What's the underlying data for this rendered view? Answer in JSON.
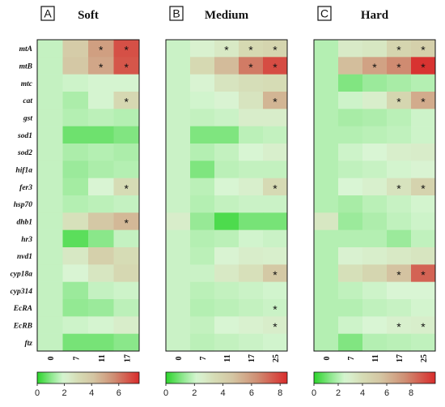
{
  "genes": [
    "mtA",
    "mtB",
    "mtc",
    "cat",
    "gst",
    "sod1",
    "sod2",
    "hif1a",
    "fer3",
    "hsp70",
    "dhb1",
    "hr3",
    "nvd1",
    "cyp18a",
    "cyp314",
    "EcRA",
    "EcRB",
    "ftz"
  ],
  "chart_data": [
    {
      "type": "heatmap",
      "panel_label": "A",
      "title": "Soft",
      "x": [
        "0",
        "7",
        "11",
        "17"
      ],
      "colorbar": {
        "min": 0,
        "max": 7.5,
        "ticks": [
          "0",
          "2",
          "4",
          "6"
        ],
        "tick_values": [
          0,
          2,
          4,
          6
        ]
      },
      "values": [
        [
          1.7,
          3.8,
          5.2,
          6.8
        ],
        [
          1.7,
          4.0,
          5.0,
          6.7
        ],
        [
          1.7,
          1.8,
          1.9,
          1.9
        ],
        [
          1.7,
          1.4,
          1.9,
          3.2
        ],
        [
          1.7,
          1.5,
          1.6,
          1.5
        ],
        [
          1.7,
          0.7,
          0.7,
          0.9
        ],
        [
          1.7,
          1.4,
          1.5,
          1.4
        ],
        [
          1.7,
          1.2,
          1.4,
          1.5
        ],
        [
          1.7,
          1.3,
          2.0,
          3.0
        ],
        [
          1.7,
          1.5,
          1.6,
          1.7
        ],
        [
          1.7,
          2.8,
          4.0,
          4.5
        ],
        [
          1.7,
          0.5,
          1.0,
          1.7
        ],
        [
          1.7,
          2.5,
          3.6,
          3.0
        ],
        [
          1.7,
          2.0,
          2.6,
          3.2
        ],
        [
          1.7,
          1.2,
          1.7,
          1.8
        ],
        [
          1.7,
          1.1,
          1.2,
          1.6
        ],
        [
          1.7,
          1.8,
          1.9,
          2.3
        ],
        [
          1.7,
          0.8,
          0.8,
          1.0
        ]
      ],
      "significant": [
        [
          0,
          2
        ],
        [
          0,
          3
        ],
        [
          1,
          2
        ],
        [
          1,
          3
        ],
        [
          3,
          3
        ],
        [
          8,
          3
        ],
        [
          10,
          3
        ]
      ]
    },
    {
      "type": "heatmap",
      "panel_label": "B",
      "title": "Medium",
      "x": [
        "0",
        "7",
        "11",
        "17",
        "25"
      ],
      "colorbar": {
        "min": 0,
        "max": 8.5,
        "ticks": [
          "0",
          "2",
          "4",
          "6",
          "8"
        ],
        "tick_values": [
          0,
          2,
          4,
          6,
          8
        ]
      },
      "values": [
        [
          2.0,
          2.4,
          2.8,
          3.6,
          3.8
        ],
        [
          2.0,
          3.6,
          5.0,
          6.8,
          7.8
        ],
        [
          2.0,
          2.3,
          3.0,
          3.3,
          3.4
        ],
        [
          2.0,
          2.1,
          2.3,
          3.0,
          5.2
        ],
        [
          2.0,
          1.9,
          2.0,
          2.6,
          2.6
        ],
        [
          2.0,
          1.0,
          1.0,
          1.8,
          1.9
        ],
        [
          2.0,
          1.7,
          1.9,
          2.2,
          2.5
        ],
        [
          2.0,
          1.0,
          1.8,
          1.9,
          1.9
        ],
        [
          2.0,
          1.8,
          2.2,
          2.5,
          3.5
        ],
        [
          2.0,
          1.7,
          1.9,
          2.0,
          2.0
        ],
        [
          2.6,
          1.3,
          0.4,
          0.9,
          0.9
        ],
        [
          2.0,
          1.7,
          1.8,
          2.1,
          2.0
        ],
        [
          2.0,
          1.8,
          2.3,
          2.6,
          2.5
        ],
        [
          2.0,
          2.0,
          2.8,
          3.2,
          4.5
        ],
        [
          2.0,
          1.8,
          1.9,
          2.0,
          2.1
        ],
        [
          2.0,
          1.7,
          1.8,
          1.9,
          2.0
        ],
        [
          2.0,
          1.9,
          2.2,
          2.4,
          2.6
        ],
        [
          2.0,
          1.8,
          1.9,
          2.0,
          2.1
        ]
      ],
      "significant": [
        [
          0,
          2
        ],
        [
          0,
          3
        ],
        [
          0,
          4
        ],
        [
          1,
          3
        ],
        [
          1,
          4
        ],
        [
          3,
          4
        ],
        [
          8,
          4
        ],
        [
          13,
          4
        ],
        [
          15,
          4
        ],
        [
          16,
          4
        ]
      ]
    },
    {
      "type": "heatmap",
      "panel_label": "C",
      "title": "Hard",
      "x": [
        "0",
        "7",
        "11",
        "17",
        "25"
      ],
      "colorbar": {
        "min": 0,
        "max": 10,
        "ticks": [
          "0",
          "2",
          "4",
          "6",
          "8"
        ],
        "tick_values": [
          0,
          2,
          4,
          6,
          8
        ]
      },
      "values": [
        [
          2.0,
          3.2,
          3.4,
          4.5,
          4.8
        ],
        [
          2.0,
          5.8,
          6.8,
          7.6,
          9.8
        ],
        [
          2.0,
          1.2,
          1.6,
          1.8,
          2.0
        ],
        [
          2.0,
          2.4,
          3.0,
          4.4,
          6.5
        ],
        [
          2.0,
          1.8,
          1.9,
          2.1,
          2.4
        ],
        [
          2.0,
          2.0,
          2.1,
          2.2,
          2.4
        ],
        [
          2.0,
          2.4,
          2.6,
          3.0,
          3.1
        ],
        [
          2.0,
          2.2,
          2.3,
          2.5,
          2.7
        ],
        [
          2.0,
          2.6,
          2.9,
          3.6,
          4.6
        ],
        [
          2.0,
          1.8,
          2.1,
          2.3,
          2.5
        ],
        [
          3.4,
          1.6,
          1.9,
          2.2,
          2.4
        ],
        [
          2.0,
          2.0,
          2.0,
          1.6,
          2.2
        ],
        [
          2.0,
          2.8,
          3.0,
          3.3,
          3.5
        ],
        [
          2.0,
          3.8,
          4.4,
          5.6,
          8.6
        ],
        [
          2.0,
          2.2,
          2.4,
          2.6,
          2.6
        ],
        [
          2.0,
          2.0,
          2.2,
          2.3,
          2.5
        ],
        [
          2.0,
          2.4,
          2.6,
          2.9,
          3.0
        ],
        [
          2.0,
          1.2,
          2.0,
          2.1,
          2.2
        ]
      ],
      "significant": [
        [
          0,
          3
        ],
        [
          0,
          4
        ],
        [
          1,
          2
        ],
        [
          1,
          3
        ],
        [
          1,
          4
        ],
        [
          3,
          3
        ],
        [
          3,
          4
        ],
        [
          8,
          3
        ],
        [
          8,
          4
        ],
        [
          13,
          3
        ],
        [
          13,
          4
        ],
        [
          16,
          3
        ],
        [
          16,
          4
        ]
      ]
    }
  ],
  "colors": {
    "low": "#2bd42b",
    "mid": "#d4c6a3",
    "high": "#d92b2b"
  }
}
